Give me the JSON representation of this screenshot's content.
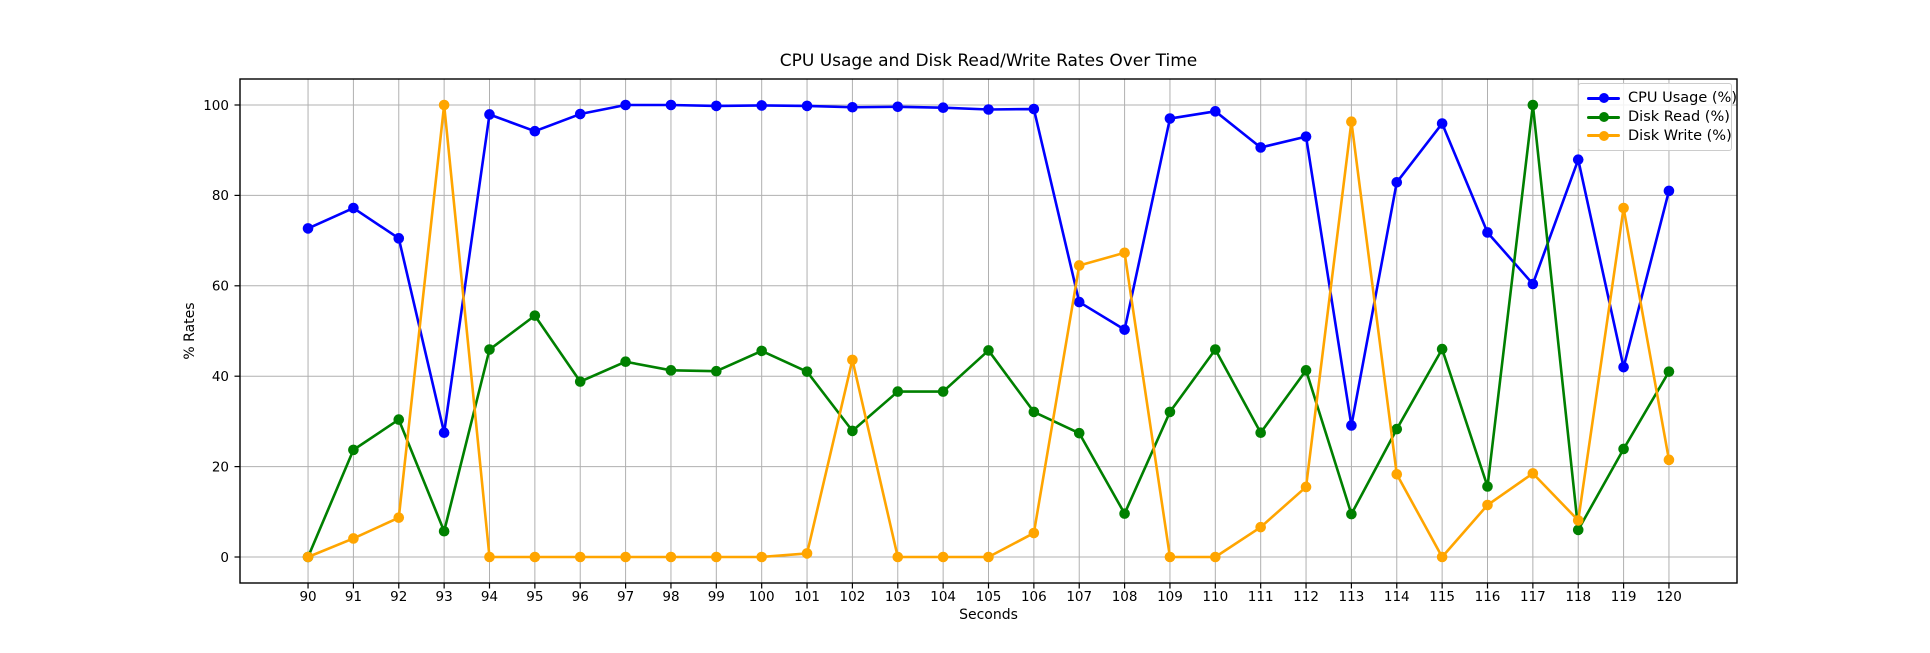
{
  "chart_data": {
    "type": "line",
    "title": "CPU Usage and Disk Read/Write Rates Over Time",
    "xlabel": "Seconds",
    "ylabel": "% Rates",
    "x": [
      90,
      91,
      92,
      93,
      94,
      95,
      96,
      97,
      98,
      99,
      100,
      101,
      102,
      103,
      104,
      105,
      106,
      107,
      108,
      109,
      110,
      111,
      112,
      113,
      114,
      115,
      116,
      117,
      118,
      119,
      120
    ],
    "series": [
      {
        "name": "CPU Usage (%)",
        "color": "#0000ff",
        "marker": "circle",
        "values": [
          72.7,
          77.2,
          70.5,
          27.5,
          97.9,
          94.2,
          98.0,
          100.0,
          100.0,
          99.8,
          99.9,
          99.8,
          99.5,
          99.6,
          99.4,
          99.0,
          99.1,
          56.4,
          50.3,
          97.0,
          98.6,
          90.6,
          93.0,
          29.1,
          82.9,
          95.9,
          71.8,
          60.4,
          87.9,
          42.0,
          81.0
        ]
      },
      {
        "name": "Disk Read (%)",
        "color": "#008000",
        "marker": "circle",
        "values": [
          0.0,
          23.7,
          30.4,
          5.7,
          45.9,
          53.4,
          38.8,
          43.2,
          41.3,
          41.1,
          45.6,
          41.0,
          27.9,
          36.6,
          36.6,
          45.7,
          32.1,
          27.4,
          9.6,
          32.1,
          45.9,
          27.5,
          41.3,
          9.5,
          28.3,
          46.0,
          15.6,
          100.0,
          6.0,
          23.9,
          41.0
        ]
      },
      {
        "name": "Disk Write (%)",
        "color": "#ffa500",
        "marker": "circle",
        "values": [
          0.0,
          4.1,
          8.7,
          100.0,
          0.0,
          0.0,
          0.0,
          0.0,
          0.0,
          0.0,
          0.0,
          0.8,
          43.6,
          0.0,
          0.0,
          0.0,
          5.3,
          64.5,
          67.3,
          0.0,
          0.0,
          6.6,
          15.5,
          96.3,
          18.3,
          0.0,
          11.5,
          18.5,
          8.1,
          77.2,
          21.5
        ]
      }
    ],
    "xticks": [
      90,
      91,
      92,
      93,
      94,
      95,
      96,
      97,
      98,
      99,
      100,
      101,
      102,
      103,
      104,
      105,
      106,
      107,
      108,
      109,
      110,
      111,
      112,
      113,
      114,
      115,
      116,
      117,
      118,
      119,
      120
    ],
    "yticks": [
      0,
      20,
      40,
      60,
      80,
      100
    ],
    "xlim": [
      88.5,
      121.5
    ],
    "ylim": [
      -5.75,
      105.75
    ],
    "grid": true,
    "grid_color": "#b0b0b0",
    "axes_edge_color": "#000000",
    "tick_label_color": "#000000",
    "background_color": "#ffffff",
    "legend_position": "upper right"
  }
}
